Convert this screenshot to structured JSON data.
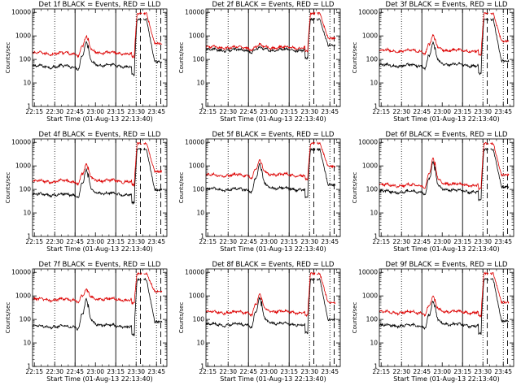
{
  "colors": {
    "events": "#000000",
    "lld": "#dd0000",
    "axis": "#000000"
  },
  "shared": {
    "xlabel": "Start Time (01-Aug-13 22:13:40)",
    "ylabel": "Counts/sec",
    "xticks": [
      "22:15",
      "22:30",
      "22:45",
      "23:00",
      "23:15",
      "23:30",
      "23:45"
    ],
    "yticks": [
      "1",
      "10",
      "100",
      "1000",
      "10000"
    ]
  },
  "chart_data": [
    {
      "type": "line",
      "title": "Det 1f BLACK = Events, RED = LLD",
      "x_unit": "minutes after 22:13:40",
      "xlim": [
        0,
        99
      ],
      "ylim": [
        1,
        14000
      ],
      "yscale": "log",
      "series": [
        {
          "name": "Events",
          "color": "#000000",
          "baseline": 50,
          "peak": 480,
          "high": 5000
        },
        {
          "name": "LLD",
          "color": "#dd0000",
          "baseline": 180,
          "peak": 850,
          "high": 9000
        }
      ]
    },
    {
      "type": "line",
      "title": "Det 2f BLACK = Events, RED = LLD",
      "x_unit": "minutes after 22:13:40",
      "xlim": [
        0,
        99
      ],
      "ylim": [
        1,
        14000
      ],
      "yscale": "log",
      "series": [
        {
          "name": "Events",
          "color": "#000000",
          "baseline": 250,
          "peak": 300,
          "high": 5000
        },
        {
          "name": "LLD",
          "color": "#dd0000",
          "baseline": 320,
          "peak": 380,
          "high": 9000
        }
      ]
    },
    {
      "type": "line",
      "title": "Det 3f BLACK = Events, RED = LLD",
      "x_unit": "minutes after 22:13:40",
      "xlim": [
        0,
        99
      ],
      "ylim": [
        1,
        14000
      ],
      "yscale": "log",
      "series": [
        {
          "name": "Events",
          "color": "#000000",
          "baseline": 55,
          "peak": 450,
          "high": 5000
        },
        {
          "name": "LLD",
          "color": "#dd0000",
          "baseline": 230,
          "peak": 900,
          "high": 9000
        }
      ]
    },
    {
      "type": "line",
      "title": "Det 4f BLACK = Events, RED = LLD",
      "x_unit": "minutes after 22:13:40",
      "xlim": [
        0,
        99
      ],
      "ylim": [
        1,
        14000
      ],
      "yscale": "log",
      "series": [
        {
          "name": "Events",
          "color": "#000000",
          "baseline": 60,
          "peak": 600,
          "high": 5000
        },
        {
          "name": "LLD",
          "color": "#dd0000",
          "baseline": 220,
          "peak": 1000,
          "high": 9000
        }
      ]
    },
    {
      "type": "line",
      "title": "Det 5f BLACK = Events, RED = LLD",
      "x_unit": "minutes after 22:13:40",
      "xlim": [
        0,
        99
      ],
      "ylim": [
        1,
        14000
      ],
      "yscale": "log",
      "series": [
        {
          "name": "Events",
          "color": "#000000",
          "baseline": 100,
          "peak": 1000,
          "high": 5000
        },
        {
          "name": "LLD",
          "color": "#dd0000",
          "baseline": 400,
          "peak": 1500,
          "high": 9000
        }
      ]
    },
    {
      "type": "line",
      "title": "Det 6f BLACK = Events, RED = LLD",
      "x_unit": "minutes after 22:13:40",
      "xlim": [
        0,
        99
      ],
      "ylim": [
        1,
        14000
      ],
      "yscale": "log",
      "series": [
        {
          "name": "Events",
          "color": "#000000",
          "baseline": 80,
          "peak": 1200,
          "high": 5000
        },
        {
          "name": "LLD",
          "color": "#dd0000",
          "baseline": 150,
          "peak": 1800,
          "high": 9000
        }
      ]
    },
    {
      "type": "line",
      "title": "Det 7f BLACK = Events, RED = LLD",
      "x_unit": "minutes after 22:13:40",
      "xlim": [
        0,
        99
      ],
      "ylim": [
        1,
        14000
      ],
      "yscale": "log",
      "series": [
        {
          "name": "Events",
          "color": "#000000",
          "baseline": 50,
          "peak": 600,
          "high": 5000
        },
        {
          "name": "LLD",
          "color": "#dd0000",
          "baseline": 700,
          "peak": 1600,
          "high": 9000
        }
      ]
    },
    {
      "type": "line",
      "title": "Det 8f BLACK = Events, RED = LLD",
      "x_unit": "minutes after 22:13:40",
      "xlim": [
        0,
        99
      ],
      "ylim": [
        1,
        14000
      ],
      "yscale": "log",
      "series": [
        {
          "name": "Events",
          "color": "#000000",
          "baseline": 60,
          "peak": 700,
          "high": 5000
        },
        {
          "name": "LLD",
          "color": "#dd0000",
          "baseline": 200,
          "peak": 1000,
          "high": 9000
        }
      ]
    },
    {
      "type": "line",
      "title": "Det 9f BLACK = Events, RED = LLD",
      "x_unit": "minutes after 22:13:40",
      "xlim": [
        0,
        99
      ],
      "ylim": [
        1,
        14000
      ],
      "yscale": "log",
      "series": [
        {
          "name": "Events",
          "color": "#000000",
          "baseline": 55,
          "peak": 500,
          "high": 5000
        },
        {
          "name": "LLD",
          "color": "#dd0000",
          "baseline": 200,
          "peak": 800,
          "high": 9000
        }
      ]
    }
  ]
}
